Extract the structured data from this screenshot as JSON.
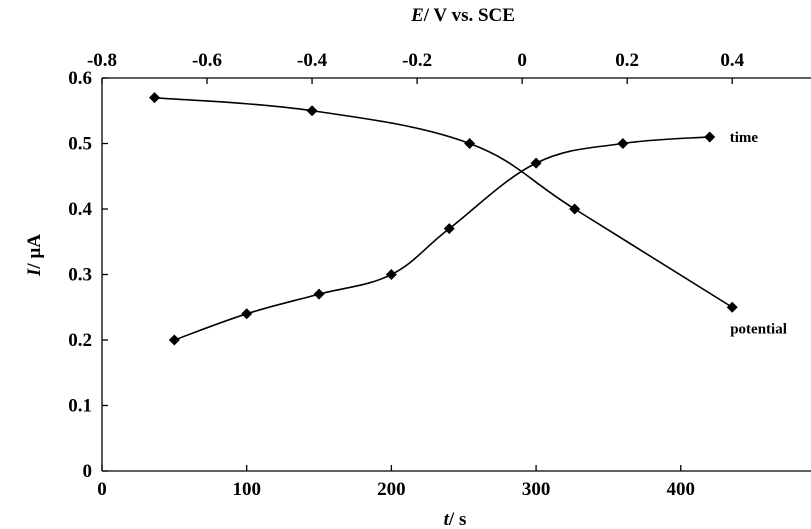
{
  "chart_data": {
    "type": "line",
    "title": "",
    "bottom_axis": {
      "label_var": "t",
      "label_rest": "/ s",
      "ticks": [
        0,
        100,
        200,
        300,
        400
      ],
      "tick_labels": [
        "0",
        "100",
        "200",
        "300",
        "400"
      ],
      "range": [
        0,
        490
      ]
    },
    "top_axis": {
      "label_var": "E",
      "label_rest": "/ V vs. SCE",
      "ticks": [
        -0.8,
        -0.6,
        -0.4,
        -0.2,
        0,
        0.2,
        0.4
      ],
      "tick_labels": [
        "-0.8",
        "-0.6",
        "-0.4",
        "-0.2",
        "0",
        "0.2",
        "0.4"
      ],
      "range": [
        -0.8,
        0.55
      ]
    },
    "y_axis": {
      "label_var": "I",
      "label_rest": "/ μA",
      "ticks": [
        0,
        0.1,
        0.2,
        0.3,
        0.4,
        0.5,
        0.6
      ],
      "tick_labels": [
        "0",
        "0.1",
        "0.2",
        "0.3",
        "0.4",
        "0.5",
        "0.6"
      ],
      "range": [
        0,
        0.6
      ]
    },
    "series": [
      {
        "name": "time",
        "axis": "bottom",
        "x": [
          50,
          100,
          150,
          200,
          240,
          300,
          360,
          420
        ],
        "y": [
          0.2,
          0.24,
          0.27,
          0.3,
          0.37,
          0.47,
          0.5,
          0.51
        ]
      },
      {
        "name": "potential",
        "axis": "top",
        "x": [
          -0.7,
          -0.4,
          -0.1,
          0.1,
          0.4
        ],
        "y": [
          0.57,
          0.55,
          0.5,
          0.4,
          0.25
        ]
      }
    ],
    "grid": false,
    "marker": "diamond",
    "legend": "none"
  }
}
